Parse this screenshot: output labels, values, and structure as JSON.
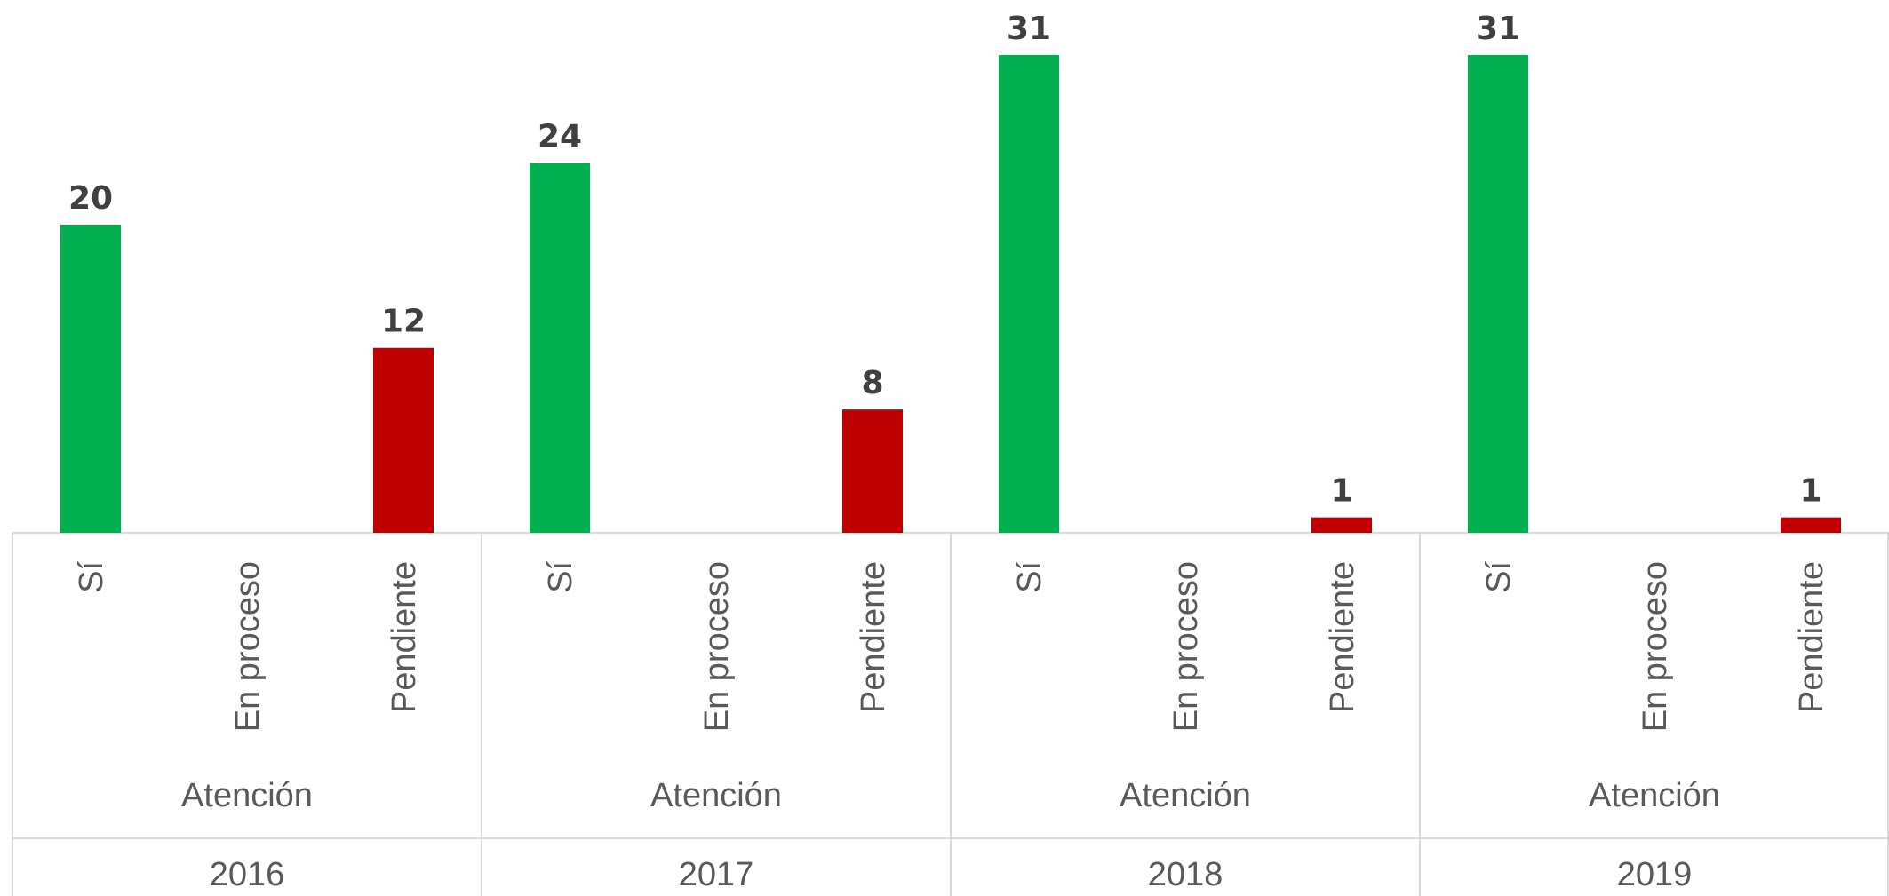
{
  "chart_data": {
    "type": "bar",
    "title": "",
    "xlabel": "",
    "ylabel": "",
    "ylim": [
      0,
      31
    ],
    "grid": false,
    "legend": "none",
    "colors": {
      "Sí": "#00b050",
      "En proceso": "#00b050",
      "Pendiente": "#c00000"
    },
    "groups": [
      {
        "year": "2016",
        "label": "Atención",
        "categories": [
          "Sí",
          "En proceso",
          "Pendiente"
        ],
        "values": [
          20,
          0,
          12
        ],
        "value_labels": [
          "20",
          "",
          "12"
        ]
      },
      {
        "year": "2017",
        "label": "Atención",
        "categories": [
          "Sí",
          "En proceso",
          "Pendiente"
        ],
        "values": [
          24,
          0,
          8
        ],
        "value_labels": [
          "24",
          "",
          "8"
        ]
      },
      {
        "year": "2018",
        "label": "Atención",
        "categories": [
          "Sí",
          "En proceso",
          "Pendiente"
        ],
        "values": [
          31,
          0,
          1
        ],
        "value_labels": [
          "31",
          "",
          "1"
        ]
      },
      {
        "year": "2019",
        "label": "Atención",
        "categories": [
          "Sí",
          "En proceso",
          "Pendiente"
        ],
        "values": [
          31,
          0,
          1
        ],
        "value_labels": [
          "31",
          "",
          "1"
        ]
      }
    ]
  }
}
